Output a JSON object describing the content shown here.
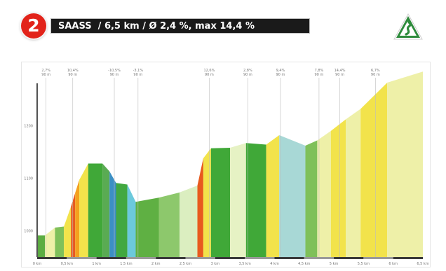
{
  "header": {
    "stage_number": "2",
    "title": "SAASS  / 6,5 km / Ø 2,4 %, max 14,4 %"
  },
  "icons": {
    "climb": "climb-road-sign-icon"
  },
  "colors": {
    "badge": "#e2231a",
    "title_bg": "#1a1a1a",
    "climb_sign": "#2e8b3c",
    "axis": "#555555"
  },
  "chart_data": {
    "type": "area",
    "title": "",
    "xlabel": "",
    "ylabel": "",
    "x_ticks": [
      "0 km",
      "0,5 km",
      "1 km",
      "1,5 km",
      "2 km",
      "2,5 km",
      "3 km",
      "3,5 km",
      "4 km",
      "4,5 km",
      "5 km",
      "5,5 km",
      "6 km",
      "6,5 km"
    ],
    "y_ticks": [
      "1000",
      "1100",
      "1200"
    ],
    "ylim": [
      950,
      1310
    ],
    "grade_markers": [
      {
        "x": 0.15,
        "grade": "2,7%",
        "sub": "90 m"
      },
      {
        "x": 0.6,
        "grade": "10,4%",
        "sub": "90 m"
      },
      {
        "x": 1.3,
        "grade": "-10,5%",
        "sub": "90 m"
      },
      {
        "x": 1.7,
        "grade": "-3,1%",
        "sub": "90 m"
      },
      {
        "x": 2.9,
        "grade": "12,6%",
        "sub": "90 m"
      },
      {
        "x": 3.55,
        "grade": "2,8%",
        "sub": "90 m"
      },
      {
        "x": 4.1,
        "grade": "9,4%",
        "sub": "90 m"
      },
      {
        "x": 4.75,
        "grade": "7,8%",
        "sub": "90 m"
      },
      {
        "x": 5.1,
        "grade": "14,4%",
        "sub": "90 m"
      },
      {
        "x": 5.7,
        "grade": "6,7%",
        "sub": "90 m"
      }
    ],
    "segments": [
      {
        "x0": 0.0,
        "x1": 0.13,
        "y0": 991,
        "y1": 991,
        "color": "#5cad42"
      },
      {
        "x0": 0.13,
        "x1": 0.3,
        "y0": 991,
        "y1": 1006,
        "color": "#eef0a8"
      },
      {
        "x0": 0.3,
        "x1": 0.45,
        "y0": 1006,
        "y1": 1008,
        "color": "#7fc05a"
      },
      {
        "x0": 0.45,
        "x1": 0.57,
        "y0": 1008,
        "y1": 1046,
        "color": "#f2e34b"
      },
      {
        "x0": 0.57,
        "x1": 0.64,
        "y0": 1046,
        "y1": 1072,
        "color": "#e85a1e"
      },
      {
        "x0": 0.64,
        "x1": 0.71,
        "y0": 1072,
        "y1": 1097,
        "color": "#f4a11e"
      },
      {
        "x0": 0.71,
        "x1": 0.86,
        "y0": 1097,
        "y1": 1128,
        "color": "#f2e34b"
      },
      {
        "x0": 0.86,
        "x1": 1.1,
        "y0": 1128,
        "y1": 1128,
        "color": "#40a838"
      },
      {
        "x0": 1.1,
        "x1": 1.22,
        "y0": 1128,
        "y1": 1113,
        "color": "#5aab53"
      },
      {
        "x0": 1.22,
        "x1": 1.33,
        "y0": 1113,
        "y1": 1091,
        "color": "#3c8fc4"
      },
      {
        "x0": 1.33,
        "x1": 1.52,
        "y0": 1091,
        "y1": 1088,
        "color": "#42a840"
      },
      {
        "x0": 1.52,
        "x1": 1.66,
        "y0": 1088,
        "y1": 1055,
        "color": "#6cc9dc"
      },
      {
        "x0": 1.66,
        "x1": 2.05,
        "y0": 1055,
        "y1": 1063,
        "color": "#5fb043"
      },
      {
        "x0": 2.05,
        "x1": 2.4,
        "y0": 1063,
        "y1": 1073,
        "color": "#8dc86c"
      },
      {
        "x0": 2.4,
        "x1": 2.7,
        "y0": 1073,
        "y1": 1086,
        "color": "#dbeec0"
      },
      {
        "x0": 2.7,
        "x1": 2.8,
        "y0": 1086,
        "y1": 1138,
        "color": "#e85a1e"
      },
      {
        "x0": 2.8,
        "x1": 2.93,
        "y0": 1138,
        "y1": 1157,
        "color": "#f2e34b"
      },
      {
        "x0": 2.93,
        "x1": 3.25,
        "y0": 1157,
        "y1": 1158,
        "color": "#40a838"
      },
      {
        "x0": 3.25,
        "x1": 3.52,
        "y0": 1158,
        "y1": 1167,
        "color": "#e6f2c4"
      },
      {
        "x0": 3.52,
        "x1": 3.86,
        "y0": 1167,
        "y1": 1164,
        "color": "#40a838"
      },
      {
        "x0": 3.86,
        "x1": 4.08,
        "y0": 1164,
        "y1": 1182,
        "color": "#f2e34b"
      },
      {
        "x0": 4.08,
        "x1": 4.52,
        "y0": 1182,
        "y1": 1162,
        "color": "#a8d8d6"
      },
      {
        "x0": 4.52,
        "x1": 4.72,
        "y0": 1162,
        "y1": 1172,
        "color": "#7fc05a"
      },
      {
        "x0": 4.72,
        "x1": 4.95,
        "y0": 1172,
        "y1": 1190,
        "color": "#eef0a8"
      },
      {
        "x0": 4.95,
        "x1": 5.2,
        "y0": 1190,
        "y1": 1212,
        "color": "#f2e34b"
      },
      {
        "x0": 5.2,
        "x1": 5.45,
        "y0": 1212,
        "y1": 1232,
        "color": "#eef0a8"
      },
      {
        "x0": 5.45,
        "x1": 5.9,
        "y0": 1232,
        "y1": 1282,
        "color": "#f2e34b"
      },
      {
        "x0": 5.9,
        "x1": 6.5,
        "y0": 1282,
        "y1": 1303,
        "color": "#eef0a8"
      }
    ]
  }
}
